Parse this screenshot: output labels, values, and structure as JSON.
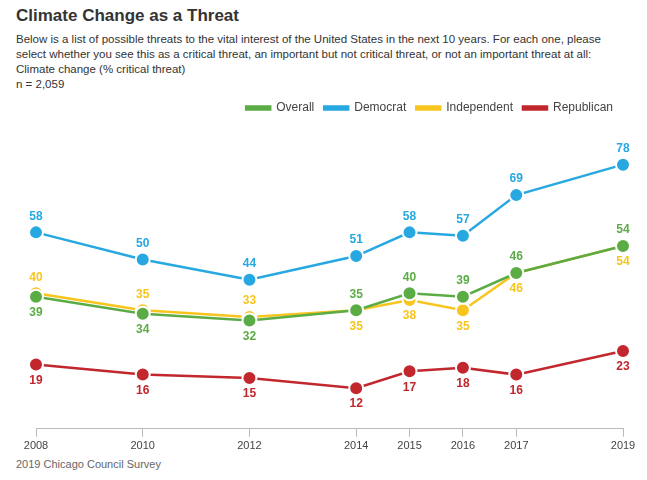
{
  "chart_data": {
    "type": "line",
    "title": "Climate Change as a Threat",
    "subtitle": "Below is a list of possible threats to the vital interest of the United States in the next 10 years. For each one, please select whether you see this as a critical threat, an important but not critical threat, or not an important threat at all: Climate change (% critical threat)",
    "note": "n = 2,059",
    "source": "2019 Chicago Council Survey",
    "x": [
      2008,
      2010,
      2012,
      2014,
      2015,
      2016,
      2017,
      2019
    ],
    "xlim": [
      2008,
      2019
    ],
    "xticks": [
      2008,
      2010,
      2012,
      2014,
      2015,
      2016,
      2017,
      2019
    ],
    "ylim": [
      0,
      90
    ],
    "yticks": [],
    "tick_labels": "x",
    "grid": false,
    "legend": "top-right",
    "data_labels": true,
    "series": [
      {
        "name": "Overall",
        "color": "#5cac46",
        "marker": "circle",
        "line_style": "solid",
        "values": [
          39,
          34,
          32,
          35,
          40,
          39,
          46,
          54
        ]
      },
      {
        "name": "Democrat",
        "color": "#27a8e0",
        "marker": "circle",
        "line_style": "solid",
        "values": [
          58,
          50,
          44,
          51,
          58,
          57,
          69,
          78
        ]
      },
      {
        "name": "Independent",
        "color": "#f7c51e",
        "marker": "circle",
        "line_style": "solid",
        "values": [
          40,
          35,
          33,
          35,
          38,
          35,
          46,
          54
        ]
      },
      {
        "name": "Republican",
        "color": "#c1272d",
        "marker": "circle",
        "line_style": "solid",
        "values": [
          19,
          16,
          15,
          12,
          17,
          18,
          16,
          23
        ]
      }
    ]
  }
}
